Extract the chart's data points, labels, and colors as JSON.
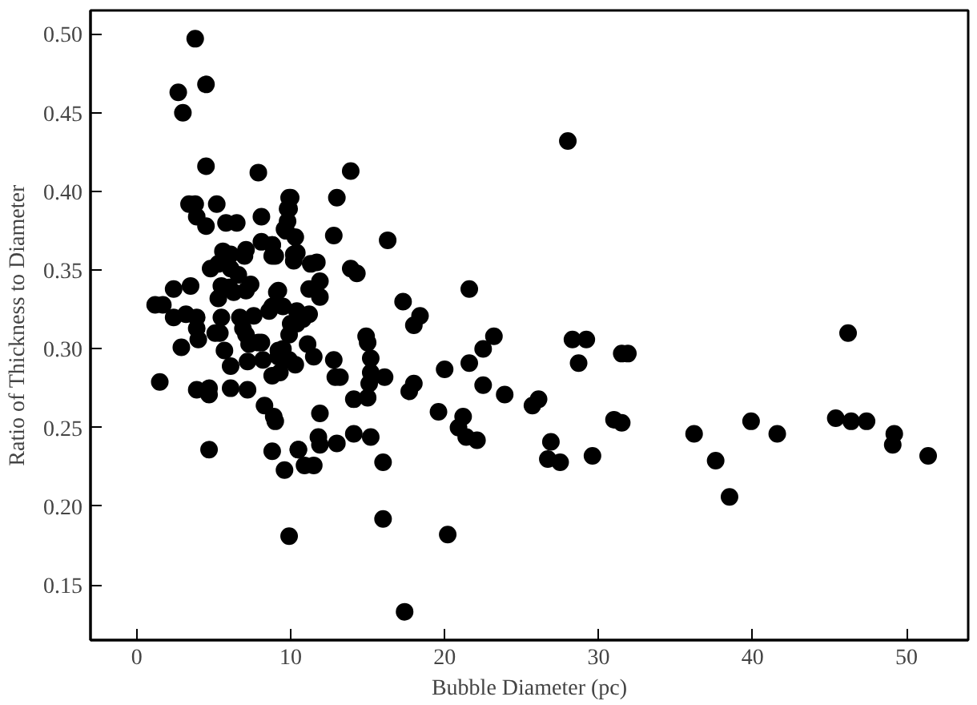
{
  "chart_data": {
    "type": "scatter",
    "xlabel": "Bubble Diameter (pc)",
    "ylabel": "Ratio of Thickness to Diameter",
    "color": "#000000",
    "marker": "circle",
    "grid": false,
    "xlim": [
      -3,
      54
    ],
    "ylim": [
      0.115,
      0.515
    ],
    "xticks": [
      0,
      10,
      20,
      30,
      40,
      50
    ],
    "yticks": [
      {
        "value": 0.15,
        "label": "0.15"
      },
      {
        "value": 0.2,
        "label": "0.20"
      },
      {
        "value": 0.25,
        "label": "0.25"
      },
      {
        "value": 0.3,
        "label": "0.30"
      },
      {
        "value": 0.35,
        "label": "0.35"
      },
      {
        "value": 0.4,
        "label": "0.40"
      },
      {
        "value": 0.45,
        "label": "0.45"
      },
      {
        "value": 0.5,
        "label": "0.50"
      }
    ],
    "x": [
      3.8,
      2.7,
      3.0,
      4.5,
      4.5,
      7.9,
      3.4,
      3.8,
      5.2,
      3.9,
      4.5,
      5.8,
      6.5,
      8.1,
      9.9,
      9.9,
      9.8,
      9.6,
      5.6,
      6.1,
      7.1,
      8.1,
      8.8,
      7.0,
      4.8,
      5.3,
      8.8,
      10.2,
      6.1,
      6.6,
      2.4,
      3.5,
      5.5,
      6.0,
      7.4,
      5.3,
      6.3,
      7.1,
      9.1,
      9.5,
      1.2,
      1.7,
      2.4,
      3.2,
      3.9,
      5.5,
      6.7,
      7.6,
      8.6,
      10.8,
      3.9,
      4.0,
      5.1,
      5.4,
      6.9,
      7.1,
      7.9,
      2.9,
      5.7,
      7.3,
      8.1,
      9.5,
      9.2,
      7.2,
      8.2,
      6.1,
      1.5,
      3.9,
      4.7,
      4.7,
      6.1,
      7.2,
      8.3,
      8.9,
      4.7,
      8.8,
      10.5,
      9.6,
      10.9,
      9.9,
      28.0,
      13.9,
      10.0,
      13.0,
      9.8,
      9.7,
      12.8,
      16.3,
      8.8,
      9.0,
      10.3,
      10.4,
      10.2,
      11.3,
      11.7,
      13.9,
      14.3,
      11.9,
      11.2,
      21.6,
      9.2,
      11.9,
      17.3,
      18.4,
      18.0,
      10.4,
      11.2,
      10.0,
      9.9,
      10.4,
      8.8,
      14.9,
      15.0,
      23.2,
      28.3,
      29.2,
      22.5,
      11.1,
      11.5,
      9.2,
      9.9,
      10.3,
      12.8,
      15.2,
      28.7,
      21.6,
      20.0,
      8.8,
      9.3,
      12.9,
      13.2,
      15.2,
      15.1,
      16.1,
      18.0,
      17.7,
      22.5,
      23.9,
      26.1,
      25.7,
      14.1,
      15.0,
      19.6,
      21.2,
      20.9,
      21.4,
      22.1,
      26.9,
      26.7,
      27.5,
      29.6,
      11.9,
      9.0,
      14.1,
      15.2,
      11.8,
      11.9,
      13.0,
      10.5,
      11.5,
      16.0,
      16.0,
      20.2,
      17.4,
      31.5,
      31.9,
      31.0,
      31.5,
      36.2,
      37.6,
      38.5,
      39.9,
      41.6,
      45.4,
      46.2,
      46.4,
      47.4,
      49.2,
      49.1,
      51.4
    ],
    "values": [
      0.497,
      0.463,
      0.45,
      0.468,
      0.416,
      0.412,
      0.392,
      0.392,
      0.392,
      0.384,
      0.378,
      0.38,
      0.38,
      0.384,
      0.396,
      0.389,
      0.381,
      0.376,
      0.362,
      0.36,
      0.363,
      0.368,
      0.366,
      0.359,
      0.351,
      0.354,
      0.359,
      0.36,
      0.351,
      0.347,
      0.338,
      0.34,
      0.34,
      0.339,
      0.341,
      0.332,
      0.336,
      0.337,
      0.336,
      0.327,
      0.328,
      0.328,
      0.32,
      0.322,
      0.32,
      0.32,
      0.32,
      0.321,
      0.324,
      0.319,
      0.313,
      0.306,
      0.31,
      0.31,
      0.313,
      0.309,
      0.304,
      0.301,
      0.299,
      0.303,
      0.304,
      0.3,
      0.295,
      0.292,
      0.293,
      0.289,
      0.279,
      0.274,
      0.275,
      0.271,
      0.275,
      0.274,
      0.264,
      0.257,
      0.236,
      0.235,
      0.236,
      0.223,
      0.226,
      0.181,
      0.432,
      0.413,
      0.396,
      0.396,
      0.389,
      0.375,
      0.372,
      0.369,
      0.366,
      0.359,
      0.371,
      0.361,
      0.356,
      0.354,
      0.355,
      0.351,
      0.348,
      0.343,
      0.338,
      0.338,
      0.337,
      0.333,
      0.33,
      0.321,
      0.315,
      0.324,
      0.322,
      0.316,
      0.309,
      0.316,
      0.327,
      0.308,
      0.304,
      0.308,
      0.306,
      0.306,
      0.3,
      0.303,
      0.295,
      0.299,
      0.293,
      0.29,
      0.293,
      0.294,
      0.291,
      0.291,
      0.287,
      0.283,
      0.285,
      0.282,
      0.282,
      0.285,
      0.278,
      0.282,
      0.278,
      0.273,
      0.277,
      0.271,
      0.268,
      0.264,
      0.268,
      0.269,
      0.26,
      0.257,
      0.25,
      0.244,
      0.242,
      0.241,
      0.23,
      0.228,
      0.232,
      0.259,
      0.254,
      0.246,
      0.244,
      0.244,
      0.239,
      0.24,
      0.236,
      0.226,
      0.228,
      0.192,
      0.182,
      0.133,
      0.297,
      0.297,
      0.255,
      0.253,
      0.246,
      0.229,
      0.206,
      0.254,
      0.246,
      0.256,
      0.31,
      0.254,
      0.254,
      0.246,
      0.239,
      0.232
    ]
  }
}
